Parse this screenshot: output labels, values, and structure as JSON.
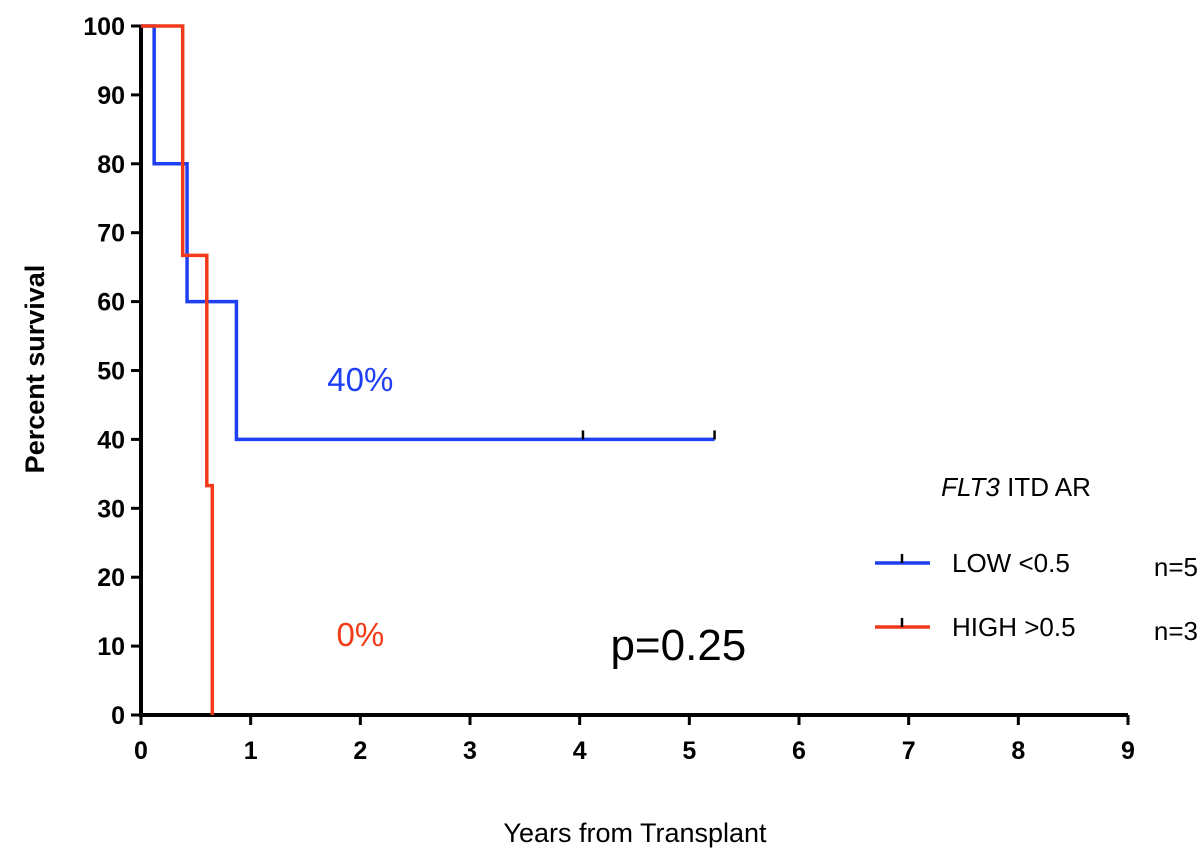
{
  "chart_data": {
    "type": "line",
    "subtype": "kaplan-meier-step",
    "xlabel": "Years from Transplant",
    "ylabel": "Percent survival",
    "xlim": [
      0,
      9
    ],
    "ylim": [
      0,
      100
    ],
    "x_ticks": [
      0,
      1,
      2,
      3,
      4,
      5,
      6,
      7,
      8,
      9
    ],
    "y_ticks": [
      0,
      10,
      20,
      30,
      40,
      50,
      60,
      70,
      80,
      90,
      100
    ],
    "grid": false,
    "legend": {
      "title_italic": "FLT3",
      "title_rest": "ITD AR",
      "placement": "right"
    },
    "series": [
      {
        "name": "LOW <0.5",
        "n_label": "n=5",
        "color": "#1f3ff5",
        "steps": [
          [
            0,
            100
          ],
          [
            0.12,
            100
          ],
          [
            0.12,
            80
          ],
          [
            0.42,
            80
          ],
          [
            0.42,
            60
          ],
          [
            0.87,
            60
          ],
          [
            0.87,
            40
          ],
          [
            5.23,
            40
          ]
        ],
        "censored": [
          [
            4.03,
            40
          ],
          [
            5.23,
            40
          ]
        ],
        "annotation": "40%",
        "annotation_pos": [
          2.0,
          47
        ]
      },
      {
        "name": "HIGH >0.5",
        "n_label": "n=3",
        "color": "#f23a1a",
        "steps": [
          [
            0,
            100
          ],
          [
            0.38,
            100
          ],
          [
            0.38,
            66.7
          ],
          [
            0.6,
            66.7
          ],
          [
            0.6,
            33.3
          ],
          [
            0.65,
            33.3
          ],
          [
            0.65,
            0
          ]
        ],
        "censored": [],
        "annotation": "0%",
        "annotation_pos": [
          2.0,
          10
        ]
      }
    ],
    "p_value": "p=0.25",
    "p_value_pos": [
      4.9,
      8
    ]
  }
}
